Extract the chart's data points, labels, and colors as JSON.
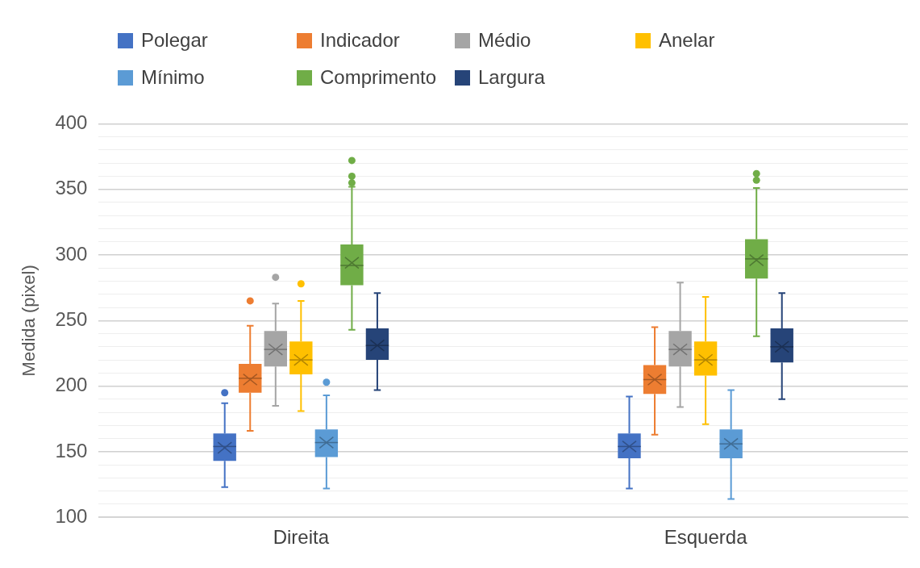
{
  "chart_data": {
    "type": "box",
    "ylabel": "Medida (pixel)",
    "categories": [
      "Direita",
      "Esquerda"
    ],
    "ylim": [
      100,
      400
    ],
    "yticks": [
      100,
      {
        "value": 110,
        "label": null
      },
      {
        "value": 120,
        "label": null
      },
      {
        "value": 130,
        "label": null
      },
      {
        "value": 140,
        "label": null
      },
      150,
      {
        "value": 160,
        "label": null
      },
      {
        "value": 170,
        "label": null
      },
      {
        "value": 180,
        "label": null
      },
      {
        "value": 190,
        "label": null
      },
      200,
      {
        "value": 210,
        "label": null
      },
      {
        "value": 220,
        "label": null
      },
      {
        "value": 230,
        "label": null
      },
      {
        "value": 240,
        "label": null
      },
      250,
      {
        "value": 260,
        "label": null
      },
      {
        "value": 270,
        "label": null
      },
      {
        "value": 280,
        "label": null
      },
      {
        "value": 290,
        "label": null
      },
      300,
      {
        "value": 310,
        "label": null
      },
      {
        "value": 320,
        "label": null
      },
      {
        "value": 330,
        "label": null
      },
      {
        "value": 340,
        "label": null
      },
      350,
      {
        "value": 360,
        "label": null
      },
      {
        "value": 370,
        "label": null
      },
      {
        "value": 380,
        "label": null
      },
      {
        "value": 390,
        "label": null
      },
      400
    ],
    "grid": "y",
    "legend": "top",
    "series": [
      {
        "name": "Polegar",
        "color": "#4472c4",
        "boxes": [
          {
            "low": 123,
            "q1": 143,
            "median": 154,
            "q3": 164,
            "high": 187,
            "mean": 153,
            "outliers": [
              195
            ]
          },
          {
            "low": 122,
            "q1": 145,
            "median": 154,
            "q3": 164,
            "high": 192,
            "mean": 154
          }
        ]
      },
      {
        "name": "Indicador",
        "color": "#ed7d31",
        "boxes": [
          {
            "low": 166,
            "q1": 195,
            "median": 206,
            "q3": 217,
            "high": 246,
            "mean": 205,
            "outliers": [
              265
            ]
          },
          {
            "low": 163,
            "q1": 194,
            "median": 205,
            "q3": 216,
            "high": 245,
            "mean": 205
          }
        ]
      },
      {
        "name": "Médio",
        "color": "#a5a5a5",
        "boxes": [
          {
            "low": 185,
            "q1": 215,
            "median": 228,
            "q3": 242,
            "high": 263,
            "mean": 228,
            "outliers": [
              283
            ]
          },
          {
            "low": 184,
            "q1": 215,
            "median": 228,
            "q3": 242,
            "high": 279,
            "mean": 228
          }
        ]
      },
      {
        "name": "Anelar",
        "color": "#ffc000",
        "boxes": [
          {
            "low": 181,
            "q1": 209,
            "median": 220,
            "q3": 234,
            "high": 265,
            "mean": 220,
            "outliers": [
              278
            ]
          },
          {
            "low": 171,
            "q1": 208,
            "median": 220,
            "q3": 234,
            "high": 268,
            "mean": 220
          }
        ]
      },
      {
        "name": "Mínimo",
        "color": "#5b9bd5",
        "boxes": [
          {
            "low": 122,
            "q1": 146,
            "median": 157,
            "q3": 167,
            "high": 193,
            "mean": 157,
            "outliers": [
              203
            ]
          },
          {
            "low": 114,
            "q1": 145,
            "median": 156,
            "q3": 167,
            "high": 197,
            "mean": 156
          }
        ]
      },
      {
        "name": "Comprimento",
        "color": "#70ad47",
        "boxes": [
          {
            "low": 243,
            "q1": 277,
            "median": 292,
            "q3": 308,
            "high": 352,
            "mean": 294,
            "outliers": [
              355,
              360,
              372
            ]
          },
          {
            "low": 238,
            "q1": 282,
            "median": 297,
            "q3": 312,
            "high": 351,
            "mean": 296,
            "outliers": [
              357,
              362
            ]
          }
        ]
      },
      {
        "name": "Largura",
        "color": "#264478",
        "boxes": [
          {
            "low": 197,
            "q1": 220,
            "median": 231,
            "q3": 244,
            "high": 271,
            "mean": 231
          },
          {
            "low": 190,
            "q1": 218,
            "median": 230,
            "q3": 244,
            "high": 271,
            "mean": 230
          }
        ]
      }
    ]
  }
}
